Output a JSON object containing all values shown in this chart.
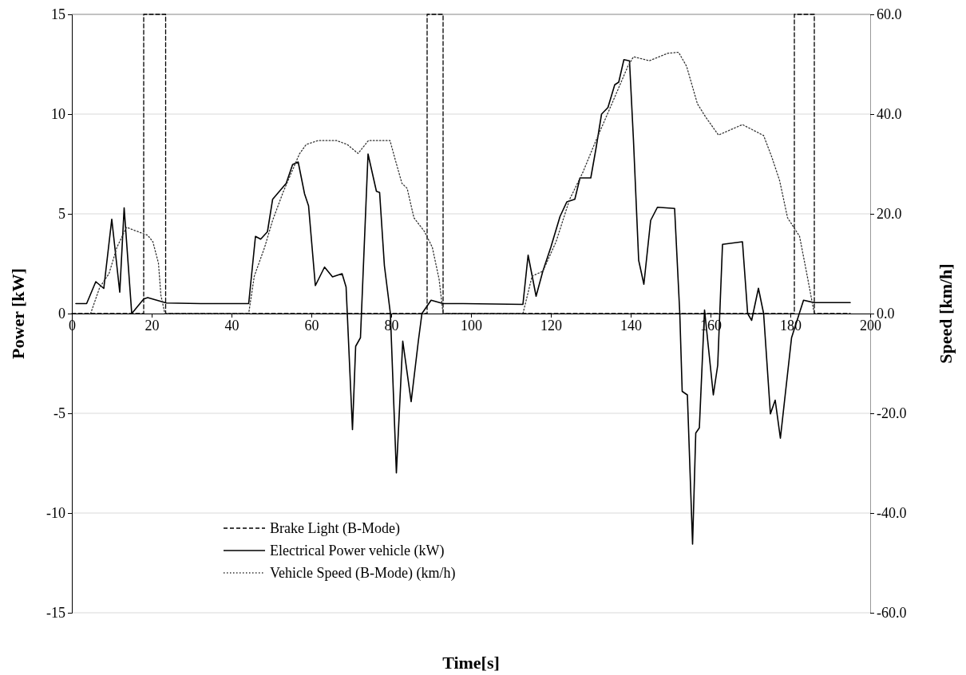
{
  "chart_data": {
    "type": "line",
    "xlabel": "Time[s]",
    "ylabel": "Power [kW]",
    "y2label": "Speed [km/h]",
    "xlim": [
      0,
      200
    ],
    "xticks": [
      0,
      20,
      40,
      60,
      80,
      100,
      120,
      140,
      160,
      180,
      200
    ],
    "ylim": [
      -15,
      15
    ],
    "yticks": [
      -15,
      -10,
      -5,
      0,
      5,
      10,
      15
    ],
    "y2lim": [
      -60,
      60
    ],
    "y2ticks": [
      {
        "value": -60,
        "label": "-60.0"
      },
      {
        "value": -40,
        "label": "-40.0"
      },
      {
        "value": -20,
        "label": "-20.0"
      },
      {
        "value": 0,
        "label": "0.0"
      },
      {
        "value": 20,
        "label": "20.0"
      },
      {
        "value": 40,
        "label": "40.0"
      },
      {
        "value": 60,
        "label": "60.0"
      }
    ],
    "grid": "y",
    "legend": "bottom left",
    "marker": "none",
    "series": [
      {
        "name": "Brake Light (B-Mode)",
        "color": "#000000",
        "line_style": "dashed",
        "x": [
          0,
          18,
          18,
          23.5,
          23.5,
          89,
          89,
          93,
          93,
          181,
          181,
          186,
          186,
          195
        ],
        "values": [
          0,
          0,
          15,
          15,
          0,
          0,
          15,
          15,
          0,
          0,
          15,
          15,
          0,
          0
        ]
      },
      {
        "name": "Electrical Power vehicle (kW)",
        "color": "#000000",
        "line_style": "solid",
        "x": [
          1,
          3.7,
          6,
          8,
          10,
          12,
          13.1,
          15,
          18,
          19,
          23.7,
          32.3,
          44.3,
          46,
          47.3,
          49,
          50.3,
          52.3,
          53.7,
          55.3,
          56.7,
          58.3,
          59.3,
          61,
          63.3,
          65.3,
          67.7,
          68.7,
          69,
          70.3,
          71.1,
          72.3,
          74.2,
          76.3,
          77.1,
          78.3,
          79.8,
          81.3,
          82.9,
          85,
          86.8,
          87.7,
          90,
          93,
          98,
          113,
          114.3,
          116.3,
          118,
          120,
          122.3,
          124,
          126,
          127.3,
          130,
          131.3,
          132.7,
          134.3,
          136,
          137,
          138.3,
          139.7,
          140.7,
          142,
          143.3,
          145,
          146.7,
          151,
          152.3,
          152.9,
          154.2,
          155.5,
          156.3,
          157.2,
          158.5,
          160.7,
          161.8,
          163,
          168,
          169.3,
          170.3,
          172,
          173.3,
          175,
          176.2,
          177.5,
          180.3,
          183.3,
          186,
          195
        ],
        "values": [
          0.5,
          0.5,
          1.6,
          1.26,
          4.73,
          1.07,
          5.3,
          0,
          0.73,
          0.8,
          0.53,
          0.5,
          0.5,
          3.87,
          3.73,
          4.1,
          5.73,
          6.2,
          6.53,
          7.47,
          7.6,
          6.0,
          5.4,
          1.4,
          2.33,
          1.84,
          2.0,
          1.33,
          0,
          -5.82,
          -1.64,
          -1.21,
          8.0,
          6.13,
          6.07,
          2.4,
          0,
          -7.99,
          -1.38,
          -4.42,
          -1.38,
          0,
          0.67,
          0.5,
          0.5,
          0.46,
          2.93,
          0.87,
          2.13,
          3.33,
          4.87,
          5.6,
          5.73,
          6.8,
          6.8,
          8.27,
          10.0,
          10.33,
          11.47,
          11.6,
          12.73,
          12.67,
          8.67,
          2.67,
          1.47,
          4.67,
          5.33,
          5.27,
          0,
          -3.9,
          -4.08,
          -11.56,
          -5.99,
          -5.73,
          0.18,
          -4.08,
          -2.59,
          3.47,
          3.6,
          0,
          -0.34,
          1.27,
          0,
          -5.03,
          -4.34,
          -6.25,
          -1.21,
          0.67,
          0.55,
          0.55
        ]
      },
      {
        "name": "Vehicle Speed (B-Mode) (km/h)",
        "color": "#333333",
        "line_style": "dotted",
        "axis": "y2",
        "x": [
          4.7,
          7,
          9.3,
          11.3,
          13.7,
          16.3,
          19,
          20.3,
          21.7,
          22.3,
          23.3,
          44.3,
          45.7,
          48.3,
          50.3,
          53,
          55.3,
          57,
          58.7,
          61.7,
          66.3,
          69,
          71.7,
          74.3,
          79.7,
          81,
          82.7,
          84,
          85.7,
          88.3,
          90.3,
          92,
          93,
          113,
          115.3,
          118,
          121.3,
          124.7,
          128,
          131.3,
          135.3,
          139.3,
          140.7,
          144.7,
          149.3,
          152,
          154,
          156.7,
          158.7,
          162,
          168,
          173.3,
          175.3,
          177.3,
          179.3,
          182.3,
          184,
          186
        ],
        "values": [
          0,
          5.3,
          8,
          13.3,
          17.3,
          16.5,
          15.7,
          14.4,
          10.1,
          3.7,
          0,
          0,
          7.5,
          13.3,
          18.7,
          24.5,
          28.8,
          32,
          33.9,
          34.7,
          34.7,
          33.9,
          32.1,
          34.7,
          34.7,
          30.9,
          26.1,
          25.1,
          19.2,
          16.5,
          13.3,
          6.9,
          0,
          0,
          7.5,
          8.5,
          14.4,
          22.9,
          28.3,
          34.7,
          42.1,
          49.6,
          51.5,
          50.7,
          52.2,
          52.4,
          49.6,
          42.1,
          39.5,
          35.8,
          37.9,
          35.7,
          31.5,
          26.7,
          19.2,
          15.5,
          8.5,
          0
        ]
      }
    ]
  }
}
